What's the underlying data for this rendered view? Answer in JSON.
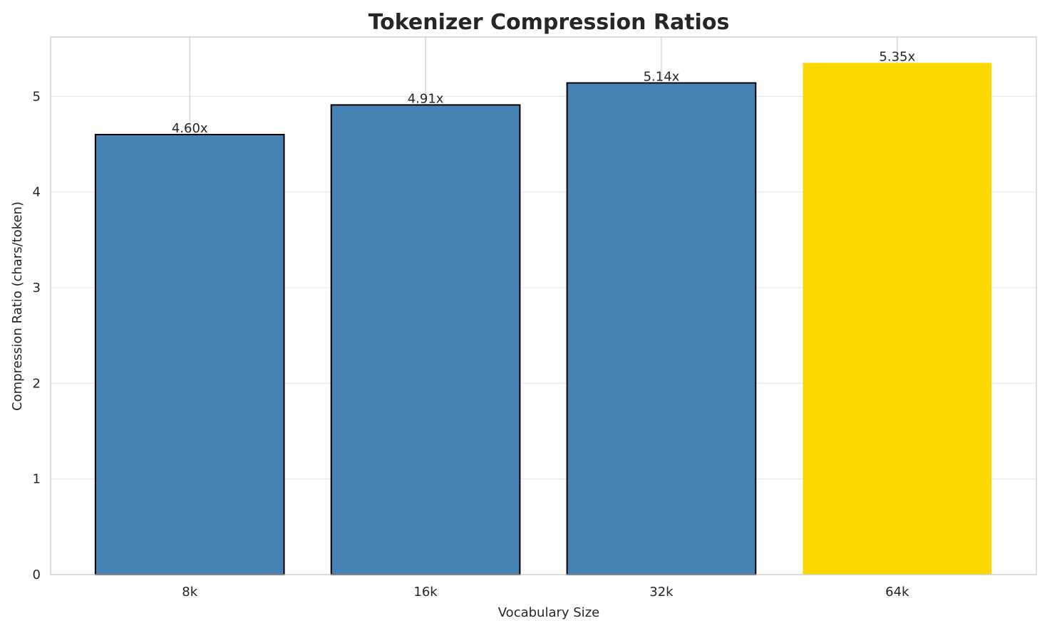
{
  "chart_data": {
    "type": "bar",
    "title": "Tokenizer Compression Ratios",
    "xlabel": "Vocabulary Size",
    "ylabel": "Compression Ratio (chars/token)",
    "categories": [
      "8k",
      "16k",
      "32k",
      "64k"
    ],
    "values": [
      4.6,
      4.91,
      5.14,
      5.35
    ],
    "data_labels": [
      "4.60x",
      "4.91x",
      "5.14x",
      "5.35x"
    ],
    "bar_colors": [
      "#4682b4",
      "#4682b4",
      "#4682b4",
      "#ffd700"
    ],
    "bar_edges": [
      true,
      true,
      true,
      false
    ],
    "ylim": [
      0,
      5.62
    ],
    "yticks": [
      0,
      1,
      2,
      3,
      4,
      5
    ],
    "grid": true,
    "legend": "none"
  }
}
